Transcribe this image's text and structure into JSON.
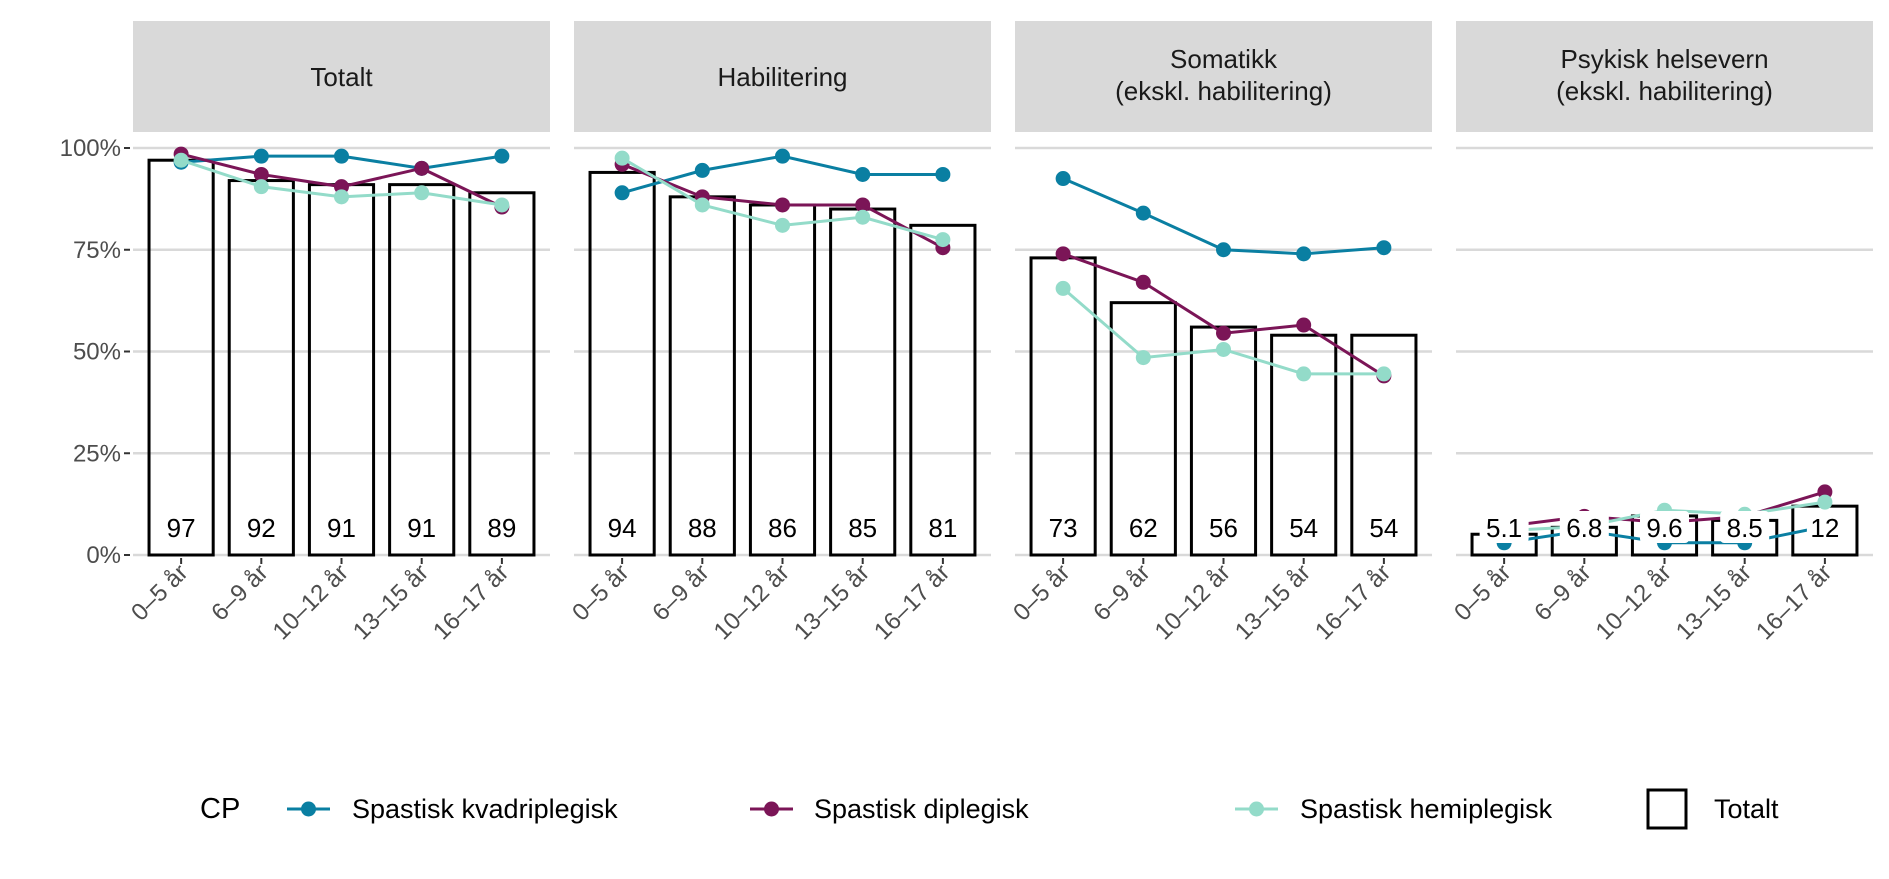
{
  "chart_data": {
    "type": "bar",
    "categories": [
      "0–5 år",
      "6–9 år",
      "10–12 år",
      "13–15 år",
      "16–17 år"
    ],
    "y_ticks": [
      "0%",
      "25%",
      "50%",
      "75%",
      "100%"
    ],
    "ylim": [
      0,
      100
    ],
    "grid": true,
    "legend": {
      "position": "bottom",
      "title": "CP",
      "totalt_label": "Totalt"
    },
    "colors": {
      "Spastisk kvadriplegisk": "#0a7fa2",
      "Spastisk diplegisk": "#7b1557",
      "Spastisk hemiplegisk": "#93dbc9",
      "strip": "#d9d9d9",
      "grid": "#d9d9d9"
    },
    "panels": [
      {
        "title": "Totalt",
        "bars": [
          97,
          92,
          91,
          91,
          89
        ],
        "bar_labels": [
          "97",
          "92",
          "91",
          "91",
          "89"
        ],
        "series": [
          {
            "name": "Spastisk kvadriplegisk",
            "values": [
              96.5,
              98,
              98,
              95,
              98
            ]
          },
          {
            "name": "Spastisk diplegisk",
            "values": [
              98.5,
              93.5,
              90.5,
              95,
              85.5
            ]
          },
          {
            "name": "Spastisk hemiplegisk",
            "values": [
              97,
              90.5,
              88,
              89,
              86
            ]
          }
        ]
      },
      {
        "title": "Habilitering",
        "bars": [
          94,
          88,
          86,
          85,
          81
        ],
        "bar_labels": [
          "94",
          "88",
          "86",
          "85",
          "81"
        ],
        "series": [
          {
            "name": "Spastisk kvadriplegisk",
            "values": [
              89,
              94.5,
              98,
              93.5,
              93.5
            ]
          },
          {
            "name": "Spastisk diplegisk",
            "values": [
              96,
              88,
              86,
              86,
              75.5
            ]
          },
          {
            "name": "Spastisk hemiplegisk",
            "values": [
              97.5,
              86,
              81,
              83,
              77.5
            ]
          }
        ]
      },
      {
        "title": "Somatikk\n(ekskl. habilitering)",
        "bars": [
          73,
          62,
          56,
          54,
          54
        ],
        "bar_labels": [
          "73",
          "62",
          "56",
          "54",
          "54"
        ],
        "series": [
          {
            "name": "Spastisk kvadriplegisk",
            "values": [
              92.5,
              84,
              75,
              74,
              75.5
            ]
          },
          {
            "name": "Spastisk diplegisk",
            "values": [
              74,
              67,
              54.5,
              56.5,
              44
            ]
          },
          {
            "name": "Spastisk hemiplegisk",
            "values": [
              65.5,
              48.5,
              50.5,
              44.5,
              44.5
            ]
          }
        ]
      },
      {
        "title": "Psykisk helsevern\n(ekskl. habilitering)",
        "bars": [
          5.1,
          6.8,
          9.6,
          8.5,
          12
        ],
        "bar_labels": [
          "5.1",
          "6.8",
          "9.6",
          "8.5",
          "12"
        ],
        "series": [
          {
            "name": "Spastisk kvadriplegisk",
            "values": [
              3,
              6,
              3,
              3,
              7
            ]
          },
          {
            "name": "Spastisk diplegisk",
            "values": [
              7,
              9.5,
              8,
              9.5,
              15.5
            ]
          },
          {
            "name": "Spastisk hemiplegisk",
            "values": [
              6,
              7,
              11,
              10,
              13
            ]
          }
        ]
      }
    ]
  }
}
